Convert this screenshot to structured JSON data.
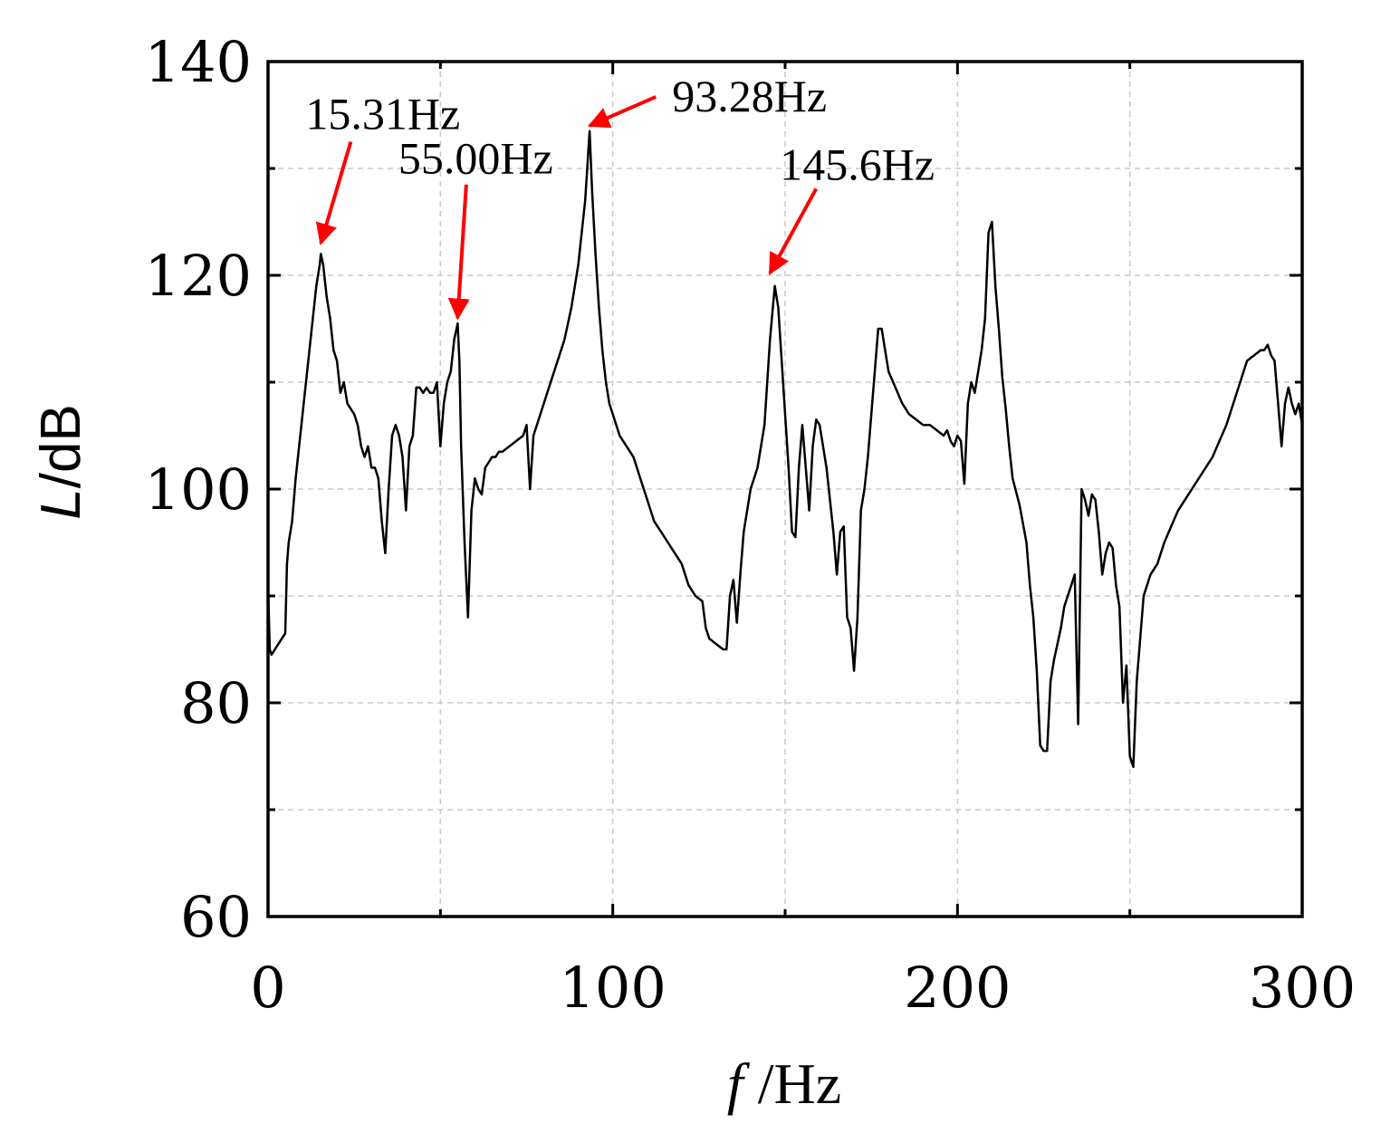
{
  "chart_data": {
    "type": "line",
    "xlabel": {
      "var": "f",
      "unit": " /Hz"
    },
    "ylabel": {
      "var": "L",
      "unit": "/dB"
    },
    "xlim": [
      0,
      300
    ],
    "ylim": [
      60,
      140
    ],
    "x_ticks": [
      0,
      100,
      200,
      300
    ],
    "y_ticks": [
      60,
      80,
      100,
      120,
      140
    ],
    "x_grid": [
      50,
      100,
      150,
      200,
      250
    ],
    "y_grid": [
      70,
      80,
      90,
      100,
      110,
      120,
      130
    ],
    "grid": true,
    "line_color": "#000000",
    "arrow_color": "#ff0000",
    "series": [
      {
        "values_note": "",
        "x": [
          0,
          0.5,
          1,
          2,
          3,
          4,
          5,
          5.5,
          6,
          7,
          8,
          9,
          10,
          11,
          12,
          13,
          14,
          15,
          15.31,
          16,
          17,
          18,
          19,
          20,
          21,
          22,
          23,
          24,
          25,
          26,
          27,
          28,
          29,
          30,
          31,
          32,
          33,
          34,
          35,
          36,
          37,
          38,
          39,
          40,
          41,
          42,
          43,
          44,
          45,
          46,
          47,
          48,
          49,
          50,
          51,
          52,
          53,
          54,
          55,
          55.5,
          56,
          57,
          58,
          59,
          60,
          61,
          62,
          63,
          64,
          65,
          66,
          67,
          68,
          70,
          72,
          74,
          75,
          76,
          77,
          78,
          79,
          80,
          81,
          82,
          84,
          86,
          88,
          90,
          91,
          92,
          93.28,
          94,
          95,
          96,
          97,
          98,
          99,
          100,
          102,
          104,
          106,
          108,
          110,
          112,
          114,
          116,
          118,
          120,
          122,
          124,
          126,
          127,
          128,
          130,
          132,
          133,
          134,
          135,
          136,
          137,
          138,
          139,
          140,
          142,
          144,
          145.6,
          147,
          148,
          149,
          150,
          151,
          152,
          153,
          154,
          155,
          156,
          157,
          158,
          159,
          160,
          161,
          162,
          163,
          164,
          165,
          166,
          167,
          168,
          169,
          170,
          171,
          172,
          173,
          174,
          175,
          176,
          177,
          178,
          179,
          180,
          182,
          184,
          186,
          188,
          190,
          192,
          194,
          196,
          197,
          198,
          199,
          200,
          201,
          202,
          203,
          204,
          205,
          206,
          207,
          208,
          209,
          210,
          211,
          212,
          213,
          214,
          215,
          216,
          218,
          220,
          221,
          222,
          223,
          224,
          225,
          226,
          227,
          228,
          229,
          230,
          231,
          232,
          233,
          234,
          235,
          236,
          237,
          238,
          239,
          240,
          241,
          242,
          243,
          244,
          245,
          246,
          247,
          248,
          249,
          250,
          251,
          252,
          253,
          254,
          256,
          258,
          260,
          262,
          264,
          266,
          268,
          270,
          272,
          274,
          276,
          278,
          280,
          282,
          284,
          286,
          288,
          289,
          290,
          291,
          292,
          293,
          294,
          295,
          296,
          297,
          298,
          299,
          300
        ],
        "y": [
          91,
          85,
          84.5,
          85,
          85.5,
          86,
          86.5,
          93,
          95,
          97,
          101,
          104,
          107,
          110,
          113,
          116,
          119,
          121,
          122,
          121,
          118,
          116,
          113,
          112,
          109,
          110,
          108,
          107.5,
          107,
          106,
          104,
          103,
          104,
          102,
          102,
          101,
          97,
          94,
          100,
          105,
          106,
          105,
          103,
          98,
          104,
          105,
          109.5,
          109.5,
          109,
          109.5,
          109,
          109,
          110,
          104,
          108,
          110,
          111,
          114,
          115.5,
          112,
          104,
          95,
          88,
          98,
          101,
          100,
          99.5,
          102,
          102.5,
          103,
          103,
          103.5,
          103.5,
          104,
          104.5,
          105,
          106,
          100,
          105,
          106,
          107,
          108,
          109,
          110,
          112,
          114,
          117,
          121,
          124,
          127,
          133.5,
          128,
          122,
          117,
          113,
          110,
          108,
          107,
          105,
          104,
          103,
          101,
          99,
          97,
          96,
          95,
          94,
          93,
          91,
          90,
          89.5,
          87,
          86,
          85.5,
          85,
          85,
          90,
          91.5,
          87.5,
          92,
          96,
          98,
          100,
          102,
          106,
          114,
          119,
          117,
          112,
          107,
          102,
          96,
          95.5,
          102,
          106,
          102,
          98,
          104,
          106.5,
          106,
          104,
          102,
          99,
          96,
          92,
          96,
          96.5,
          88,
          87,
          83,
          88,
          98,
          100,
          103,
          107,
          111,
          115,
          115,
          113,
          111,
          109.5,
          108,
          107,
          106.5,
          106,
          106,
          105.5,
          105,
          105.5,
          104.5,
          104,
          105,
          104.5,
          100.5,
          108,
          110,
          109,
          111,
          113,
          116,
          124,
          125,
          119,
          115,
          110.5,
          107.5,
          104,
          101,
          98.5,
          95,
          91,
          88,
          83,
          76,
          75.5,
          75.5,
          82,
          84,
          85.5,
          87,
          89,
          90,
          91,
          92,
          78,
          100,
          99,
          97.5,
          99.5,
          99,
          96,
          92,
          94,
          95,
          94.5,
          91,
          89,
          80,
          83.5,
          75,
          74,
          82,
          86,
          90,
          92,
          93,
          95,
          96.5,
          98,
          99,
          100,
          101,
          102,
          103,
          104.5,
          106,
          108,
          110,
          112,
          112.5,
          113,
          113,
          113.5,
          112.5,
          112,
          108,
          104,
          108,
          109.5,
          108,
          107,
          108,
          106
        ]
      }
    ],
    "annotations": [
      {
        "label": "15.31Hz",
        "tip": [
          15.31,
          123
        ],
        "tail": [
          24,
          132.5
        ]
      },
      {
        "label": "55.00Hz",
        "tip": [
          55.0,
          116
        ],
        "tail": [
          57.5,
          128.5
        ]
      },
      {
        "label": "93.28Hz",
        "tip": [
          93.28,
          134
        ],
        "tail": [
          112.5,
          136.7
        ]
      },
      {
        "label": "145.6Hz",
        "tip": [
          145.6,
          120.2
        ],
        "tail": [
          159,
          128.1
        ]
      }
    ]
  }
}
